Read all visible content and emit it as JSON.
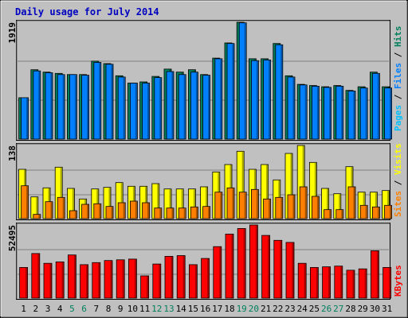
{
  "chart_data": {
    "title": "Daily usage for July 2014",
    "days": [
      "1",
      "2",
      "3",
      "4",
      "5",
      "6",
      "7",
      "8",
      "9",
      "10",
      "11",
      "12",
      "13",
      "14",
      "15",
      "16",
      "17",
      "18",
      "19",
      "20",
      "21",
      "22",
      "23",
      "24",
      "25",
      "26",
      "27",
      "28",
      "29",
      "30",
      "31"
    ],
    "weekend_days": [
      "5",
      "6",
      "12",
      "13",
      "19",
      "20",
      "26",
      "27"
    ],
    "panels": [
      {
        "type": "bar",
        "max_label": "1919",
        "ylim": [
          0,
          1919
        ],
        "series": [
          {
            "name": "Hits",
            "color": "#00805c",
            "values": [
              680,
              1140,
              1100,
              1080,
              1060,
              1060,
              1280,
              1240,
              1040,
              920,
              940,
              1030,
              1150,
              1100,
              1140,
              1060,
              1330,
              1580,
              1919,
              1320,
              1320,
              1570,
              1040,
              900,
              880,
              860,
              880,
              800,
              860,
              1100,
              860
            ]
          },
          {
            "name": "Files",
            "color": "#0080ff",
            "values": [
              680,
              1120,
              1090,
              1060,
              1060,
              1050,
              1260,
              1230,
              1020,
              920,
              920,
              1010,
              1110,
              1060,
              1100,
              1050,
              1320,
              1570,
              1910,
              1290,
              1300,
              1550,
              1020,
              890,
              870,
              850,
              870,
              790,
              840,
              1080,
              840
            ]
          },
          {
            "name": "Pages",
            "color": "#00c0ff",
            "values": [
              0,
              0,
              0,
              0,
              0,
              0,
              0,
              0,
              0,
              0,
              0,
              0,
              0,
              0,
              0,
              0,
              0,
              0,
              0,
              0,
              0,
              0,
              0,
              0,
              0,
              0,
              0,
              0,
              0,
              0,
              0
            ]
          }
        ],
        "legend": [
          "Pages",
          "Files",
          "Hits"
        ]
      },
      {
        "type": "bar",
        "max_label": "138",
        "ylim": [
          0,
          138
        ],
        "series": [
          {
            "name": "Visits",
            "color": "#ffff00",
            "values": [
              93,
              41,
              58,
              97,
              57,
              37,
              56,
              59,
              68,
              61,
              61,
              66,
              56,
              56,
              56,
              60,
              88,
              102,
              127,
              93,
              102,
              73,
              123,
              138,
              106,
              57,
              47,
              98,
              50,
              50,
              53
            ]
          },
          {
            "name": "Sites",
            "color": "#ff8000",
            "values": [
              62,
              8,
              32,
              40,
              15,
              27,
              28,
              23,
              30,
              33,
              30,
              20,
              20,
              20,
              22,
              23,
              50,
              58,
              50,
              55,
              37,
              40,
              45,
              60,
              42,
              17,
              17,
              60,
              25,
              22,
              25
            ]
          }
        ],
        "legend": [
          "Sites",
          "Visits"
        ]
      },
      {
        "type": "bar",
        "max_label": "52495",
        "ylim": [
          0,
          52495
        ],
        "series": [
          {
            "name": "KBytes",
            "color": "#ff0000",
            "values": [
              22000,
              32000,
              25000,
              26000,
              31000,
              24000,
              25500,
              27000,
              27500,
              28000,
              16000,
              24500,
              30000,
              30500,
              24000,
              28500,
              37000,
              46000,
              50000,
              52495,
              45000,
              41500,
              40000,
              25000,
              22000,
              22500,
              23000,
              20000,
              21000,
              34000,
              22000
            ]
          }
        ],
        "legend": [
          "KBytes"
        ]
      }
    ]
  }
}
